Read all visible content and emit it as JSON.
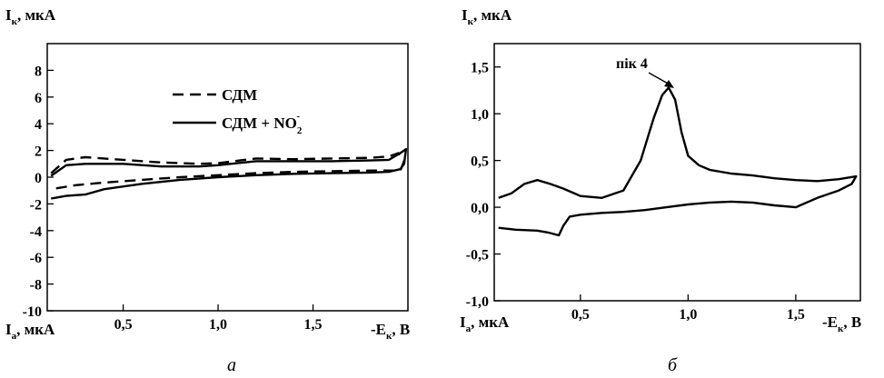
{
  "chart_data": [
    {
      "type": "line",
      "panel_label": "а",
      "ylabel_top": {
        "main": "I",
        "sub": "к",
        "rest": ", мкА"
      },
      "ylabel_bottom": {
        "main": "I",
        "sub": "а",
        "rest": ", мкА"
      },
      "xlabel": {
        "prefix": "-E",
        "sub": "к",
        "rest": ", В"
      },
      "xlim": [
        0.1,
        2.0
      ],
      "ylim": [
        -10,
        10
      ],
      "xticks": [
        0.5,
        1.0,
        1.5
      ],
      "xtick_labels": [
        "0,5",
        "1,0",
        "1,5"
      ],
      "yticks": [
        8,
        6,
        4,
        2,
        0,
        -2,
        -4,
        -6,
        -8,
        -10
      ],
      "ytick_labels": [
        "8",
        "6",
        "4",
        "2",
        "0",
        "-2",
        "-4",
        "-6",
        "-8",
        "-10"
      ],
      "legend": [
        {
          "label": "СДМ",
          "style": "dashed"
        },
        {
          "label": "СДМ + NO",
          "sub": "2",
          "sup": "-",
          "style": "solid"
        }
      ],
      "series": [
        {
          "name": "СДМ",
          "style": "dashed",
          "x": [
            0.12,
            0.2,
            0.3,
            0.5,
            0.7,
            0.9,
            1.0,
            1.2,
            1.4,
            1.6,
            1.8,
            1.9,
            1.95,
            1.98,
            1.96,
            1.9,
            1.8,
            1.6,
            1.4,
            1.2,
            1.0,
            0.8,
            0.6,
            0.4,
            0.25,
            0.12
          ],
          "y": [
            0.3,
            1.3,
            1.5,
            1.3,
            1.1,
            1.0,
            1.05,
            1.4,
            1.35,
            1.4,
            1.45,
            1.55,
            1.8,
            1.2,
            0.5,
            0.5,
            0.5,
            0.45,
            0.4,
            0.3,
            0.15,
            0.0,
            -0.2,
            -0.4,
            -0.6,
            -0.9
          ]
        },
        {
          "name": "СДМ + NO2-",
          "style": "solid",
          "x": [
            0.12,
            0.2,
            0.3,
            0.5,
            0.7,
            0.9,
            1.0,
            1.2,
            1.4,
            1.6,
            1.8,
            1.9,
            1.96,
            1.99,
            1.98,
            1.96,
            1.9,
            1.8,
            1.6,
            1.4,
            1.2,
            1.0,
            0.8,
            0.6,
            0.4,
            0.3,
            0.2,
            0.12
          ],
          "y": [
            0.1,
            0.9,
            1.0,
            1.0,
            0.8,
            0.8,
            0.9,
            1.2,
            1.2,
            1.2,
            1.25,
            1.3,
            1.8,
            2.1,
            1.0,
            0.6,
            0.4,
            0.35,
            0.3,
            0.25,
            0.15,
            0.0,
            -0.2,
            -0.5,
            -0.9,
            -1.3,
            -1.4,
            -1.6
          ]
        }
      ]
    },
    {
      "type": "line",
      "panel_label": "б",
      "ylabel_top": {
        "main": "I",
        "sub": "к",
        "rest": ", мкА"
      },
      "ylabel_bottom": {
        "main": "I",
        "sub": "а",
        "rest": ", мкА"
      },
      "xlabel": {
        "prefix": "-E",
        "sub": "к",
        "rest": ", В"
      },
      "xlim": [
        0.1,
        1.8
      ],
      "ylim": [
        -1.0,
        1.75
      ],
      "xticks": [
        0.5,
        1.0,
        1.5
      ],
      "xtick_labels": [
        "0,5",
        "1,0",
        "1,5"
      ],
      "yticks": [
        1.5,
        1.0,
        0.5,
        0.0,
        -0.5,
        -1.0
      ],
      "ytick_labels": [
        "1,5",
        "1,0",
        "0,5",
        "0,0",
        "-0,5",
        "-1,0"
      ],
      "annotation": {
        "text": "пік 4",
        "x": 0.91,
        "y": 1.28
      },
      "series": [
        {
          "name": "",
          "style": "solid",
          "x": [
            0.12,
            0.18,
            0.24,
            0.3,
            0.36,
            0.42,
            0.5,
            0.6,
            0.7,
            0.78,
            0.84,
            0.88,
            0.91,
            0.94,
            0.97,
            1.0,
            1.05,
            1.1,
            1.2,
            1.3,
            1.4,
            1.5,
            1.6,
            1.7,
            1.78,
            1.76,
            1.7,
            1.6,
            1.5,
            1.4,
            1.3,
            1.2,
            1.1,
            1.0,
            0.9,
            0.8,
            0.7,
            0.6,
            0.5,
            0.45,
            0.42,
            0.4,
            0.35,
            0.3,
            0.2,
            0.12
          ],
          "y": [
            0.1,
            0.15,
            0.25,
            0.29,
            0.25,
            0.2,
            0.12,
            0.1,
            0.18,
            0.5,
            0.95,
            1.2,
            1.28,
            1.15,
            0.8,
            0.55,
            0.45,
            0.4,
            0.36,
            0.34,
            0.31,
            0.29,
            0.28,
            0.3,
            0.33,
            0.25,
            0.18,
            0.1,
            0.0,
            0.02,
            0.05,
            0.06,
            0.05,
            0.03,
            0.0,
            -0.03,
            -0.05,
            -0.06,
            -0.08,
            -0.1,
            -0.2,
            -0.3,
            -0.27,
            -0.25,
            -0.24,
            -0.22
          ]
        }
      ]
    }
  ]
}
